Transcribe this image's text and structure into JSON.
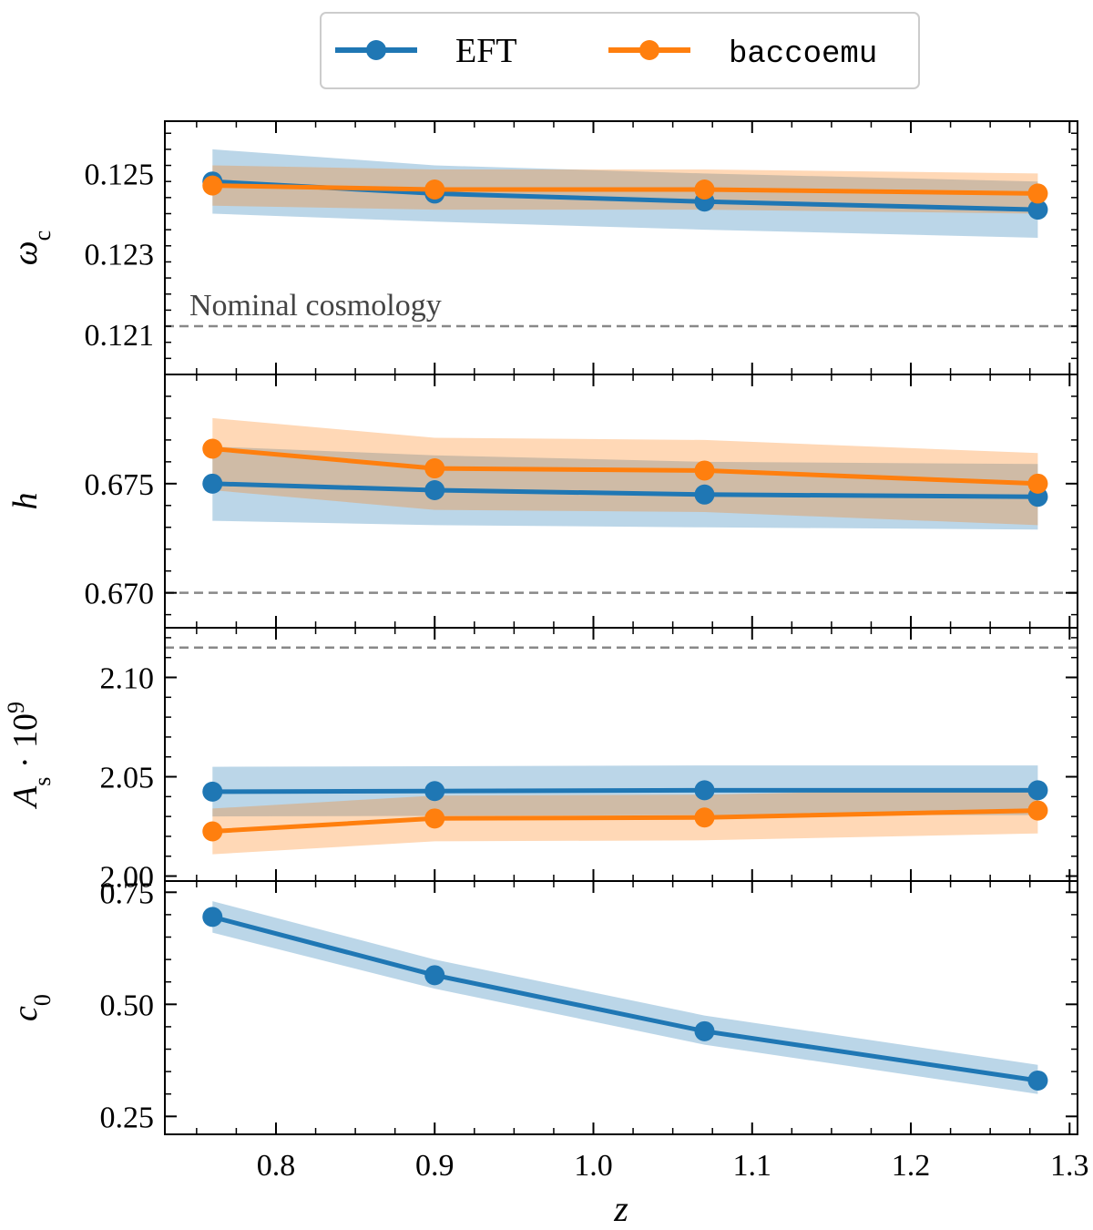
{
  "chart_data": {
    "type": "line",
    "x": [
      0.76,
      0.9,
      1.07,
      1.28
    ],
    "xlabel": "z",
    "xlim": [
      0.73,
      1.305
    ],
    "xticks": [
      0.8,
      0.9,
      1.0,
      1.1,
      1.2,
      1.3
    ],
    "xtick_labels": [
      "0.8",
      "0.9",
      "1.0",
      "1.1",
      "1.2",
      "1.3"
    ],
    "legend": {
      "placement": "top-center",
      "entries": [
        {
          "name": "EFT",
          "color": "#1f77b4",
          "font": "serif"
        },
        {
          "name": "baccoemu",
          "color": "#ff7f0e",
          "font": "mono"
        }
      ]
    },
    "panels": [
      {
        "ylabel": "ω_c",
        "ylabel_main": "ω",
        "ylabel_sub": "c",
        "ylim": [
          0.12,
          0.1263
        ],
        "yticks": [
          0.121,
          0.123,
          0.125
        ],
        "ytick_labels": [
          "0.121",
          "0.123",
          "0.125"
        ],
        "nominal": 0.1212,
        "annotation": "Nominal cosmology",
        "series": [
          {
            "name": "EFT",
            "color": "#1f77b4",
            "values": [
              0.1248,
              0.1245,
              0.1243,
              0.1241
            ],
            "lower": [
              0.124,
              0.1238,
              0.1236,
              0.1234
            ],
            "upper": [
              0.1256,
              0.1252,
              0.125,
              0.1248
            ]
          },
          {
            "name": "baccoemu",
            "color": "#ff7f0e",
            "values": [
              0.1247,
              0.1246,
              0.1246,
              0.1245
            ],
            "lower": [
              0.1242,
              0.1241,
              0.1241,
              0.124
            ],
            "upper": [
              0.1252,
              0.1251,
              0.1251,
              0.125
            ]
          }
        ]
      },
      {
        "ylabel": "h",
        "ylabel_main": "h",
        "ylabel_sub": "",
        "ylim": [
          0.6684,
          0.68
        ],
        "yticks": [
          0.67,
          0.675
        ],
        "ytick_labels": [
          "0.670",
          "0.675"
        ],
        "nominal": 0.67,
        "annotation": "",
        "series": [
          {
            "name": "EFT",
            "color": "#1f77b4",
            "values": [
              0.675,
              0.6747,
              0.6745,
              0.6744
            ],
            "lower": [
              0.6733,
              0.6731,
              0.673,
              0.6729
            ],
            "upper": [
              0.6767,
              0.6763,
              0.676,
              0.6759
            ]
          },
          {
            "name": "baccoemu",
            "color": "#ff7f0e",
            "values": [
              0.6766,
              0.6757,
              0.6756,
              0.675
            ],
            "lower": [
              0.6747,
              0.6738,
              0.6737,
              0.6731
            ],
            "upper": [
              0.678,
              0.6771,
              0.677,
              0.6764
            ]
          }
        ]
      },
      {
        "ylabel": "A_s · 10^9",
        "ylabel_main": "A",
        "ylabel_sub": "s",
        "ylabel_rest": " · 10",
        "ylabel_sup": "9",
        "ylim": [
          1.9975,
          2.125
        ],
        "yticks": [
          2.0,
          2.05,
          2.1
        ],
        "ytick_labels": [
          "2.00",
          "2.05",
          "2.10"
        ],
        "nominal": 2.115,
        "annotation": "",
        "series": [
          {
            "name": "EFT",
            "color": "#1f77b4",
            "values": [
              2.0425,
              2.0428,
              2.0432,
              2.0432
            ],
            "lower": [
              2.03,
              2.0303,
              2.0307,
              2.0307
            ],
            "upper": [
              2.055,
              2.0553,
              2.0557,
              2.0557
            ]
          },
          {
            "name": "baccoemu",
            "color": "#ff7f0e",
            "values": [
              2.0225,
              2.029,
              2.0295,
              2.033
            ],
            "lower": [
              2.011,
              2.0175,
              2.018,
              2.0215
            ],
            "upper": [
              2.034,
              2.0405,
              2.041,
              2.0445
            ]
          }
        ]
      },
      {
        "ylabel": "c_0",
        "ylabel_main": "c",
        "ylabel_sub": "0",
        "ylim": [
          0.21,
          0.775
        ],
        "yticks": [
          0.25,
          0.5,
          0.75
        ],
        "ytick_labels": [
          "0.25",
          "0.50",
          "0.75"
        ],
        "nominal": null,
        "annotation": "",
        "series": [
          {
            "name": "EFT",
            "color": "#1f77b4",
            "values": [
              0.695,
              0.565,
              0.44,
              0.33
            ],
            "lower": [
              0.66,
              0.535,
              0.41,
              0.3
            ],
            "upper": [
              0.73,
              0.6,
              0.475,
              0.365
            ]
          }
        ]
      }
    ]
  }
}
